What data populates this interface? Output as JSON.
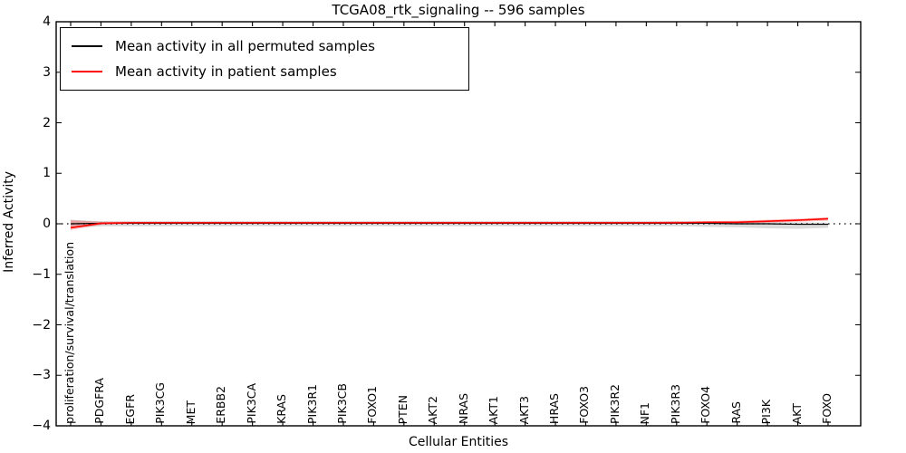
{
  "figure": {
    "background": "#ffffff"
  },
  "chart_data": {
    "type": "line",
    "title": "TCGA08_rtk_signaling -- 596 samples",
    "xlabel": "Cellular Entities",
    "ylabel": "Inferred Activity",
    "ylim": [
      -4,
      4
    ],
    "yticks": [
      4,
      3,
      2,
      1,
      0,
      -1,
      -2,
      -3,
      -4
    ],
    "ytick_labels": [
      "4",
      "3",
      "2",
      "1",
      "0",
      "−1",
      "−2",
      "−3",
      "−4"
    ],
    "grid": false,
    "legend_position": "upper-left",
    "zero_line": {
      "style": "dotted",
      "color": "#000000",
      "y": 0
    },
    "categories": [
      "proliferation/survival/translation",
      "PDGFRA",
      "EGFR",
      "PIK3CG",
      "MET",
      "ERBB2",
      "PIK3CA",
      "KRAS",
      "PIK3R1",
      "PIK3CB",
      "FOXO1",
      "PTEN",
      "AKT2",
      "NRAS",
      "AKT1",
      "AKT3",
      "HRAS",
      "FOXO3",
      "PIK3R2",
      "NF1",
      "PIK3R3",
      "FOXO4",
      "RAS",
      "PI3K",
      "AKT",
      "FOXO"
    ],
    "series": [
      {
        "name": "Mean activity in all permuted samples",
        "color": "#000000",
        "band_color": "rgba(0,0,0,0.15)",
        "values": [
          0.0,
          0.01,
          0.01,
          0.01,
          0.01,
          0.01,
          0.01,
          0.01,
          0.01,
          0.01,
          0.01,
          0.01,
          0.01,
          0.01,
          0.01,
          0.01,
          0.01,
          0.01,
          0.01,
          0.01,
          0.01,
          0.01,
          0.0,
          0.0,
          -0.01,
          -0.01
        ],
        "band_upper": [
          0.08,
          0.05,
          0.05,
          0.05,
          0.05,
          0.05,
          0.05,
          0.05,
          0.05,
          0.05,
          0.05,
          0.05,
          0.05,
          0.05,
          0.05,
          0.05,
          0.05,
          0.05,
          0.05,
          0.05,
          0.05,
          0.04,
          0.04,
          0.03,
          0.03,
          0.02
        ],
        "band_lower": [
          -0.08,
          -0.05,
          -0.05,
          -0.05,
          -0.05,
          -0.05,
          -0.05,
          -0.05,
          -0.05,
          -0.05,
          -0.05,
          -0.05,
          -0.05,
          -0.05,
          -0.05,
          -0.05,
          -0.05,
          -0.05,
          -0.05,
          -0.05,
          -0.05,
          -0.06,
          -0.07,
          -0.09,
          -0.1,
          -0.08
        ]
      },
      {
        "name": "Mean activity in patient samples",
        "color": "#ff0000",
        "band_color": "rgba(255,0,0,0.25)",
        "values": [
          -0.08,
          0.01,
          0.02,
          0.02,
          0.02,
          0.02,
          0.02,
          0.02,
          0.02,
          0.02,
          0.02,
          0.02,
          0.02,
          0.02,
          0.02,
          0.02,
          0.02,
          0.02,
          0.02,
          0.02,
          0.02,
          0.03,
          0.03,
          0.05,
          0.07,
          0.1
        ],
        "band_upper": [
          0.07,
          0.04,
          0.04,
          0.04,
          0.04,
          0.04,
          0.04,
          0.04,
          0.04,
          0.04,
          0.04,
          0.04,
          0.04,
          0.04,
          0.04,
          0.04,
          0.04,
          0.04,
          0.04,
          0.04,
          0.05,
          0.05,
          0.06,
          0.08,
          0.1,
          0.13
        ],
        "band_lower": [
          -0.12,
          -0.02,
          0.0,
          0.0,
          0.0,
          0.0,
          0.0,
          0.0,
          0.0,
          0.0,
          0.0,
          0.0,
          0.0,
          0.0,
          0.0,
          0.0,
          0.0,
          0.0,
          0.0,
          0.0,
          0.0,
          0.01,
          0.01,
          0.02,
          0.04,
          0.06
        ]
      }
    ]
  }
}
